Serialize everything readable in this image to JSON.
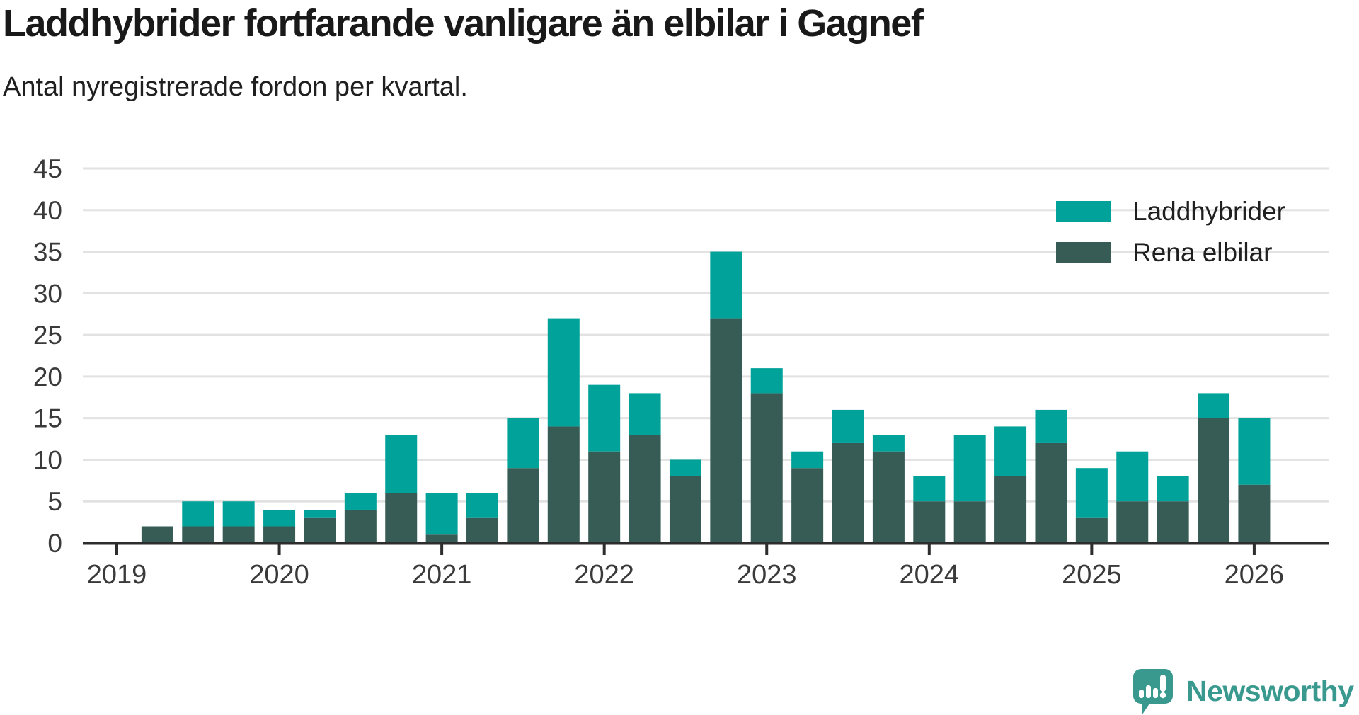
{
  "title": "Laddhybrider fortfarande vanligare än elbilar i Gagnef",
  "subtitle": "Antal nyregistrerade fordon per kvartal.",
  "chart_data": {
    "type": "bar",
    "stacked": true,
    "title": "Laddhybrider fortfarande vanligare än elbilar i Gagnef",
    "subtitle": "Antal nyregistrerade fordon per kvartal.",
    "quarters": [
      "2019 Q1",
      "2019 Q2",
      "2019 Q3",
      "2019 Q4",
      "2020 Q1",
      "2020 Q2",
      "2020 Q3",
      "2020 Q4",
      "2021 Q1",
      "2021 Q2",
      "2021 Q3",
      "2021 Q4",
      "2022 Q1",
      "2022 Q2",
      "2022 Q3",
      "2022 Q4",
      "2023 Q1",
      "2023 Q2",
      "2023 Q3",
      "2023 Q4",
      "2024 Q1",
      "2024 Q2",
      "2024 Q3",
      "2024 Q4",
      "2025 Q1",
      "2025 Q2",
      "2025 Q3",
      "2025 Q4",
      "2026 Q1"
    ],
    "series": [
      {
        "name": "Laddhybrider",
        "color": "#00a29a",
        "values": [
          0,
          0,
          3,
          3,
          2,
          1,
          2,
          7,
          5,
          3,
          6,
          13,
          8,
          5,
          2,
          8,
          3,
          2,
          4,
          2,
          3,
          8,
          6,
          4,
          6,
          6,
          3,
          3,
          8
        ]
      },
      {
        "name": "Rena elbilar",
        "color": "#365c55",
        "values": [
          0,
          2,
          2,
          2,
          2,
          3,
          4,
          6,
          1,
          3,
          9,
          14,
          11,
          13,
          8,
          27,
          18,
          9,
          12,
          11,
          5,
          5,
          8,
          12,
          3,
          5,
          5,
          15,
          7
        ]
      }
    ],
    "stack_bottom_to_top": [
      "Rena elbilar",
      "Laddhybrider"
    ],
    "ylim": [
      0,
      45
    ],
    "yticks": [
      0,
      5,
      10,
      15,
      20,
      25,
      30,
      35,
      40,
      45
    ],
    "x_tick_labels": [
      "2019",
      "2020",
      "2021",
      "2022",
      "2023",
      "2024",
      "2025",
      "2026"
    ],
    "grid": "horizontal",
    "legend_position": "top-right"
  },
  "legend": {
    "items": [
      {
        "label": "Laddhybrider",
        "color": "#00a29a"
      },
      {
        "label": "Rena elbilar",
        "color": "#365c55"
      }
    ]
  },
  "branding": {
    "name": "Newsworthy",
    "color": "#3a998e"
  }
}
